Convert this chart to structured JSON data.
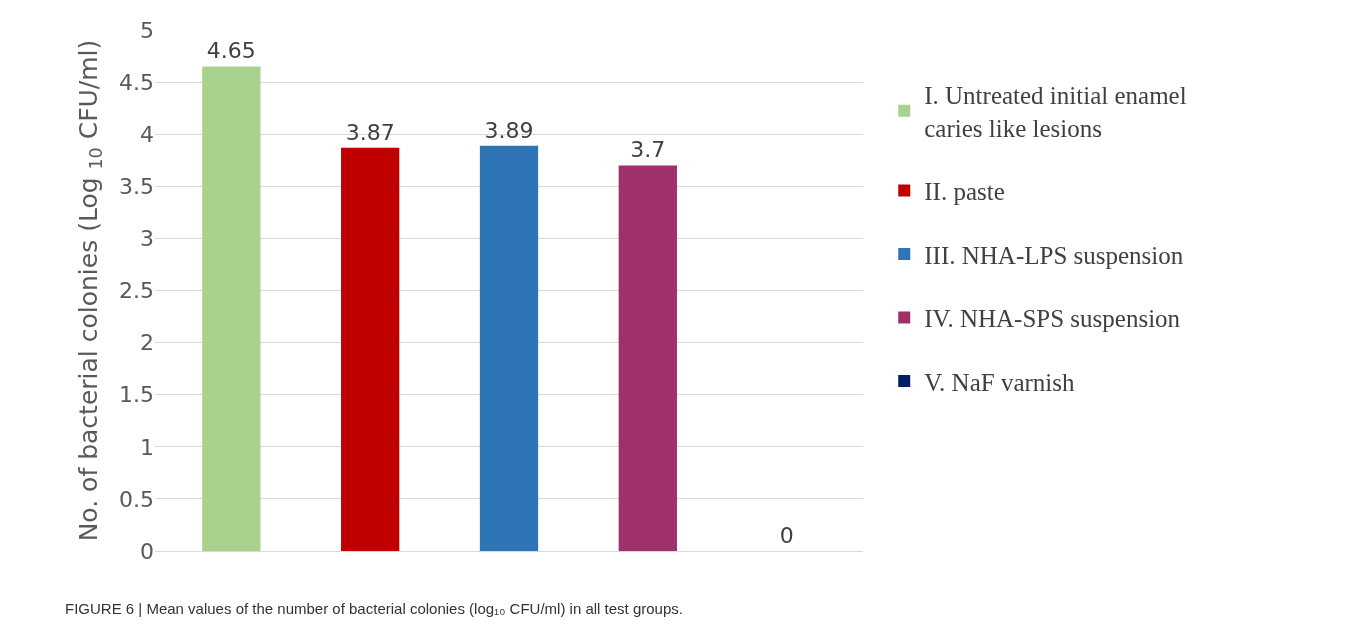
{
  "chart_data": {
    "type": "bar",
    "ylabel": "No. of bacterial colonies (Log $_{10}$ CFU/ml)",
    "categories": [
      null,
      null,
      null,
      null,
      null
    ],
    "series": [
      {
        "name": "I. Untreated initial enamel caries like lesions",
        "color": "#a9d18e",
        "values": [
          4.65,
          null,
          null,
          null,
          null
        ]
      },
      {
        "name": "II. paste",
        "color": "#c00000",
        "values": [
          null,
          3.87,
          null,
          null,
          null
        ]
      },
      {
        "name": "III. NHA-LPS suspension",
        "color": "#2e75b6",
        "values": [
          null,
          null,
          3.89,
          null,
          null
        ]
      },
      {
        "name": "IV. NHA-SPS suspension",
        "color": "#a0306a",
        "values": [
          null,
          null,
          null,
          3.7,
          null
        ]
      },
      {
        "name": "V. NaF varnish",
        "color": "#002060",
        "values": [
          null,
          null,
          null,
          null,
          0
        ]
      }
    ],
    "ylim": [
      0,
      5
    ],
    "yticks": [
      0,
      0.5,
      1,
      1.5,
      2,
      2.5,
      3,
      3.5,
      4,
      4.5,
      5
    ],
    "grid": "y",
    "legend": "right",
    "tick_labels": "y",
    "data_labels": true,
    "annotations": [
      "FIGURE 6 | Mean values of the number of bacterial colonies (log₁₀ CFU/ml) in all test groups."
    ]
  }
}
